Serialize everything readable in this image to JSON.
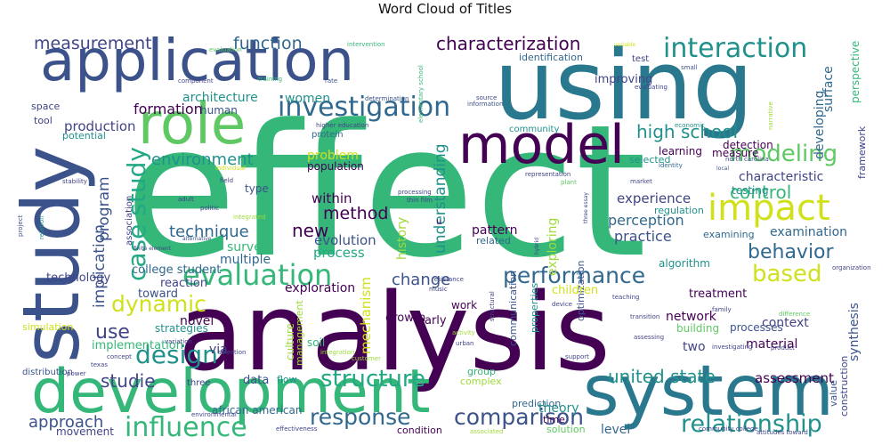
{
  "title": "Word Cloud of Titles",
  "colors": {
    "dark_purple": "#440154",
    "indigo": "#3b528b",
    "navy": "#414487",
    "teal": "#2a788e",
    "blue_teal": "#31688e",
    "green_teal": "#21918c",
    "sea_green": "#22a884",
    "green": "#35b779",
    "bright_green": "#5ec962",
    "yellow_green": "#9fda3a",
    "yellow": "#d0e11c"
  },
  "words": [
    {
      "text": "effect",
      "color": "#35b779"
    },
    {
      "text": "analysis",
      "color": "#440154"
    },
    {
      "text": "using",
      "color": "#2a788e"
    },
    {
      "text": "application",
      "color": "#3b528b"
    },
    {
      "text": "development",
      "color": "#35b779"
    },
    {
      "text": "system",
      "color": "#2a788e"
    },
    {
      "text": "study",
      "color": "#3b528b"
    },
    {
      "text": "model",
      "color": "#440154"
    },
    {
      "text": "role",
      "color": "#5ec962"
    },
    {
      "text": "impact",
      "color": "#d0e11c"
    },
    {
      "text": "investigation",
      "color": "#31688e"
    },
    {
      "text": "interaction",
      "color": "#21918c"
    },
    {
      "text": "evaluation",
      "color": "#35b779"
    },
    {
      "text": "performance",
      "color": "#31688e"
    },
    {
      "text": "design",
      "color": "#21918c"
    },
    {
      "text": "influence",
      "color": "#35b779"
    },
    {
      "text": "relationship",
      "color": "#21918c"
    },
    {
      "text": "structure",
      "color": "#22a884"
    },
    {
      "text": "modeling",
      "color": "#5ec962"
    },
    {
      "text": "case study",
      "color": "#22a884"
    },
    {
      "text": "response",
      "color": "#31688e"
    },
    {
      "text": "comparison",
      "color": "#3b528b"
    },
    {
      "text": "behavior",
      "color": "#31688e"
    },
    {
      "text": "based",
      "color": "#d0e11c"
    },
    {
      "text": "dynamic",
      "color": "#d0e11c"
    },
    {
      "text": "characterization",
      "color": "#440154"
    },
    {
      "text": "measurement",
      "color": "#414487"
    },
    {
      "text": "function",
      "color": "#31688e"
    },
    {
      "text": "high school",
      "color": "#21918c"
    },
    {
      "text": "control",
      "color": "#35b779"
    },
    {
      "text": "use",
      "color": "#414487"
    },
    {
      "text": "technique",
      "color": "#31688e"
    },
    {
      "text": "change",
      "color": "#3b528b"
    },
    {
      "text": "united state",
      "color": "#21918c"
    },
    {
      "text": "approach",
      "color": "#3b528b"
    },
    {
      "text": "studie",
      "color": "#414487"
    },
    {
      "text": "environment",
      "color": "#21918c"
    },
    {
      "text": "method",
      "color": "#440154"
    },
    {
      "text": "new",
      "color": "#440154"
    },
    {
      "text": "understanding",
      "color": "#21918c"
    },
    {
      "text": "program",
      "color": "#3b528b"
    },
    {
      "text": "implication",
      "color": "#3b528b"
    },
    {
      "text": "mechanism",
      "color": "#d0e11c"
    },
    {
      "text": "history",
      "color": "#9fda3a"
    },
    {
      "text": "production",
      "color": "#414487"
    },
    {
      "text": "formation",
      "color": "#440154"
    },
    {
      "text": "architecture",
      "color": "#21918c"
    },
    {
      "text": "women",
      "color": "#21918c"
    },
    {
      "text": "problem",
      "color": "#d0e11c"
    },
    {
      "text": "evolution",
      "color": "#3b528b"
    },
    {
      "text": "process",
      "color": "#22a884"
    },
    {
      "text": "within",
      "color": "#440154"
    },
    {
      "text": "exploring",
      "color": "#9fda3a"
    },
    {
      "text": "pattern",
      "color": "#440154"
    },
    {
      "text": "experience",
      "color": "#414487"
    },
    {
      "text": "perception",
      "color": "#31688e"
    },
    {
      "text": "practice",
      "color": "#3b528b"
    },
    {
      "text": "characteristic",
      "color": "#414487"
    },
    {
      "text": "examination",
      "color": "#31688e"
    },
    {
      "text": "assessment",
      "color": "#440154"
    },
    {
      "text": "network",
      "color": "#440154"
    },
    {
      "text": "material",
      "color": "#440154"
    },
    {
      "text": "two",
      "color": "#414487"
    },
    {
      "text": "synthesis",
      "color": "#3b528b"
    },
    {
      "text": "context",
      "color": "#414487"
    },
    {
      "text": "level",
      "color": "#31688e"
    },
    {
      "text": "theory",
      "color": "#21918c"
    },
    {
      "text": "data",
      "color": "#3b528b"
    },
    {
      "text": "via",
      "color": "#414487"
    },
    {
      "text": "novel",
      "color": "#440154"
    },
    {
      "text": "survey",
      "color": "#35b779"
    },
    {
      "text": "multiple",
      "color": "#31688e"
    },
    {
      "text": "exploration",
      "color": "#440154"
    },
    {
      "text": "toward",
      "color": "#3b528b"
    },
    {
      "text": "college student",
      "color": "#31688e"
    },
    {
      "text": "reaction",
      "color": "#414487"
    },
    {
      "text": "technology",
      "color": "#414487"
    },
    {
      "text": "implementation",
      "color": "#35b779"
    },
    {
      "text": "strategies",
      "color": "#21918c"
    },
    {
      "text": "culture",
      "color": "#9fda3a"
    },
    {
      "text": "management",
      "color": "#9fda3a"
    },
    {
      "text": "growth",
      "color": "#440154"
    },
    {
      "text": "early",
      "color": "#440154"
    },
    {
      "text": "work",
      "color": "#440154"
    },
    {
      "text": "soil",
      "color": "#35b779"
    },
    {
      "text": "flow",
      "color": "#21918c"
    },
    {
      "text": "group",
      "color": "#35b779"
    },
    {
      "text": "complex",
      "color": "#9fda3a"
    },
    {
      "text": "prediction",
      "color": "#31688e"
    },
    {
      "text": "solution",
      "color": "#5ec962"
    },
    {
      "text": "time",
      "color": "#440154"
    },
    {
      "text": "african american",
      "color": "#31688e"
    },
    {
      "text": "movement",
      "color": "#414487"
    },
    {
      "text": "condition",
      "color": "#440154"
    },
    {
      "text": "optimization",
      "color": "#3b528b"
    },
    {
      "text": "communication",
      "color": "#3b528b"
    },
    {
      "text": "properties",
      "color": "#21918c"
    },
    {
      "text": "children",
      "color": "#d0e11c"
    },
    {
      "text": "related",
      "color": "#31688e"
    },
    {
      "text": "algorithm",
      "color": "#21918c"
    },
    {
      "text": "treatment",
      "color": "#440154"
    },
    {
      "text": "building",
      "color": "#5ec962"
    },
    {
      "text": "processes",
      "color": "#3b528b"
    },
    {
      "text": "construction",
      "color": "#414487"
    },
    {
      "text": "value",
      "color": "#3b528b"
    },
    {
      "text": "surface",
      "color": "#31688e"
    },
    {
      "text": "perspective",
      "color": "#35b779"
    },
    {
      "text": "framework",
      "color": "#414487"
    },
    {
      "text": "developing",
      "color": "#31688e"
    },
    {
      "text": "measure",
      "color": "#440154"
    },
    {
      "text": "detection",
      "color": "#440154"
    },
    {
      "text": "learning",
      "color": "#440154"
    },
    {
      "text": "selected",
      "color": "#21918c"
    },
    {
      "text": "testing",
      "color": "#21918c"
    },
    {
      "text": "regulation",
      "color": "#21918c"
    },
    {
      "text": "examining",
      "color": "#31688e"
    },
    {
      "text": "improving",
      "color": "#414487"
    },
    {
      "text": "identification",
      "color": "#31688e"
    },
    {
      "text": "test",
      "color": "#414487"
    },
    {
      "text": "community",
      "color": "#21918c"
    },
    {
      "text": "protein",
      "color": "#31688e"
    },
    {
      "text": "population",
      "color": "#440154"
    },
    {
      "text": "human",
      "color": "#3b528b"
    },
    {
      "text": "space",
      "color": "#414487"
    },
    {
      "text": "tool",
      "color": "#414487"
    },
    {
      "text": "potential",
      "color": "#21918c"
    },
    {
      "text": "association",
      "color": "#414487"
    },
    {
      "text": "type",
      "color": "#3b528b"
    },
    {
      "text": "simulation",
      "color": "#d0e11c"
    },
    {
      "text": "distribution",
      "color": "#3b528b"
    },
    {
      "text": "three",
      "color": "#414487"
    },
    {
      "text": "u",
      "color": "#440154"
    },
    {
      "text": "rate",
      "color": "#3b528b"
    },
    {
      "text": "component",
      "color": "#414487"
    },
    {
      "text": "training",
      "color": "#35b779"
    },
    {
      "text": "evaluation",
      "color": "#5ec962"
    },
    {
      "text": "intervention",
      "color": "#35b779"
    },
    {
      "text": "variable",
      "color": "#d0e11c"
    },
    {
      "text": "small",
      "color": "#3b528b"
    },
    {
      "text": "source",
      "color": "#414487"
    },
    {
      "text": "information",
      "color": "#3b528b"
    },
    {
      "text": "determination",
      "color": "#3b528b"
    },
    {
      "text": "higher education",
      "color": "#414487"
    },
    {
      "text": "elementary school",
      "color": "#35b779"
    },
    {
      "text": "evaluating",
      "color": "#414487"
    },
    {
      "text": "economic",
      "color": "#21918c"
    },
    {
      "text": "narrative",
      "color": "#9fda3a"
    },
    {
      "text": "north carolina",
      "color": "#3b528b"
    },
    {
      "text": "identity",
      "color": "#31688e"
    },
    {
      "text": "local",
      "color": "#3b528b"
    },
    {
      "text": "representation",
      "color": "#414487"
    },
    {
      "text": "plant",
      "color": "#5ec962"
    },
    {
      "text": "market",
      "color": "#414487"
    },
    {
      "text": "individual",
      "color": "#d0e11c"
    },
    {
      "text": "field",
      "color": "#414487"
    },
    {
      "text": "stability",
      "color": "#414487"
    },
    {
      "text": "adult",
      "color": "#414487"
    },
    {
      "text": "politic",
      "color": "#414487"
    },
    {
      "text": "integrated",
      "color": "#9fda3a"
    },
    {
      "text": "processing",
      "color": "#414487"
    },
    {
      "text": "thin film",
      "color": "#414487"
    },
    {
      "text": "project",
      "color": "#3b528b"
    },
    {
      "text": "relation",
      "color": "#21918c"
    },
    {
      "text": "alternative",
      "color": "#3b528b"
    },
    {
      "text": "finite element",
      "color": "#414487"
    },
    {
      "text": "hybrid",
      "color": "#414487"
    },
    {
      "text": "resistance",
      "color": "#414487"
    },
    {
      "text": "music",
      "color": "#414487"
    },
    {
      "text": "device",
      "color": "#414487"
    },
    {
      "text": "teaching",
      "color": "#414487"
    },
    {
      "text": "structural",
      "color": "#414487"
    },
    {
      "text": "organization",
      "color": "#414487"
    },
    {
      "text": "family",
      "color": "#414487"
    },
    {
      "text": "transition",
      "color": "#414487"
    },
    {
      "text": "difference",
      "color": "#5ec962"
    },
    {
      "text": "product",
      "color": "#414487"
    },
    {
      "text": "investigating",
      "color": "#414487"
    },
    {
      "text": "assessing",
      "color": "#414487"
    },
    {
      "text": "activity",
      "color": "#9fda3a"
    },
    {
      "text": "urban",
      "color": "#414487"
    },
    {
      "text": "integration",
      "color": "#9fda3a"
    },
    {
      "text": "customer",
      "color": "#9fda3a"
    },
    {
      "text": "support",
      "color": "#414487"
    },
    {
      "text": "concept",
      "color": "#414487"
    },
    {
      "text": "texas",
      "color": "#414487"
    },
    {
      "text": "power",
      "color": "#414487"
    },
    {
      "text": "variation",
      "color": "#414487"
    },
    {
      "text": "selection",
      "color": "#414487"
    },
    {
      "text": "environmental",
      "color": "#414487"
    },
    {
      "text": "effectiveness",
      "color": "#414487"
    },
    {
      "text": "associated",
      "color": "#9fda3a"
    },
    {
      "text": "community college",
      "color": "#414487"
    },
    {
      "text": "attitudes toward",
      "color": "#414487"
    },
    {
      "text": "three essay",
      "color": "#414487"
    },
    {
      "text": "interface",
      "color": "#414487"
    },
    {
      "text": "sexual",
      "color": "#9fda3a"
    }
  ]
}
